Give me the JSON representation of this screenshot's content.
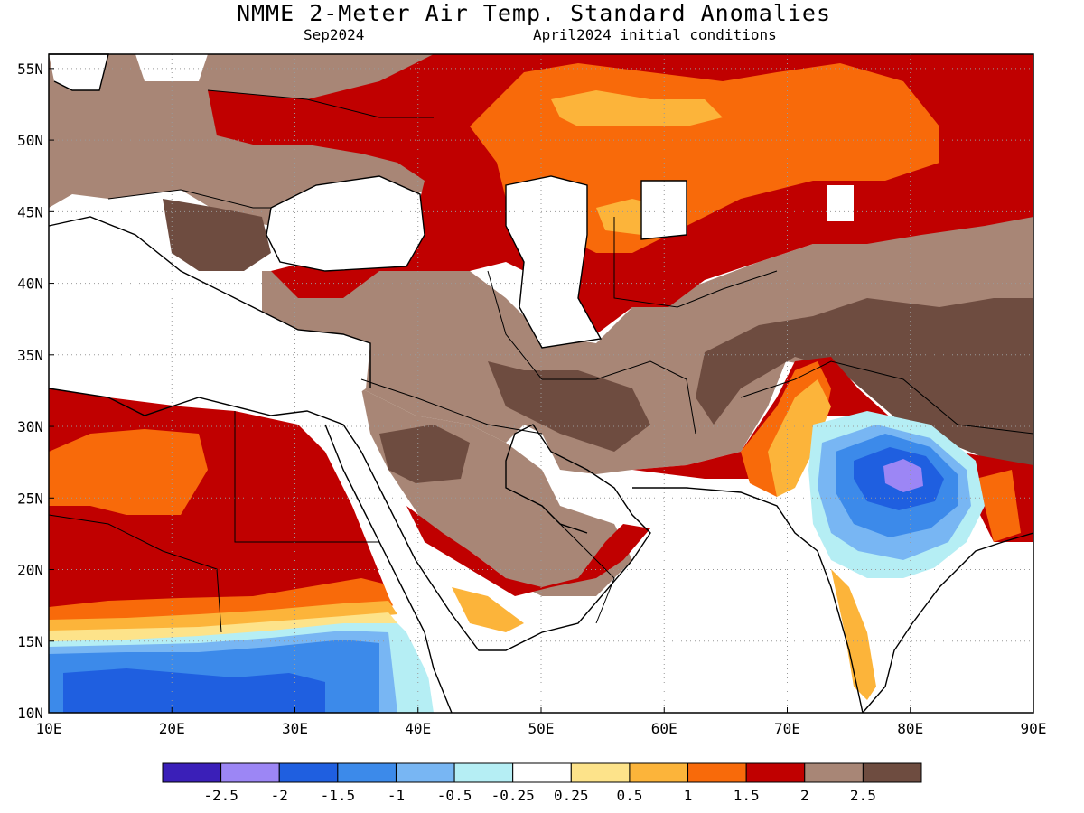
{
  "title": "NMME 2-Meter Air Temp. Standard Anomalies",
  "valid_month": "Sep2024",
  "init": "April2024 initial conditions",
  "lat_labels": [
    "55N",
    "50N",
    "45N",
    "40N",
    "35N",
    "30N",
    "25N",
    "20N",
    "15N",
    "10N"
  ],
  "lon_labels": [
    "10E",
    "20E",
    "30E",
    "40E",
    "50E",
    "60E",
    "70E",
    "80E",
    "90E"
  ],
  "map_extent": {
    "lon": [
      10,
      90
    ],
    "lat": [
      10,
      56
    ]
  },
  "legend": {
    "colors": [
      "#3a1fb8",
      "#9c86f5",
      "#1f5fe0",
      "#3c8aea",
      "#78b6f3",
      "#b5eef4",
      "#ffffff",
      "#fde38a",
      "#fcb43a",
      "#f86a0a",
      "#c00000",
      "#a88676",
      "#6e4c40"
    ],
    "labels": [
      "-2.5",
      "-2",
      "-1.5",
      "-1",
      "-0.5",
      "-0.25",
      "0.25",
      "0.5",
      "1",
      "1.5",
      "2",
      "2.5"
    ]
  },
  "colors": {
    "land_brown": "#a88676",
    "dark_brown": "#6e4c40",
    "red": "#c00000",
    "orange": "#f86a0a",
    "light_orange": "#fcb43a",
    "yellow": "#fde38a",
    "light_cyan": "#b5eef4",
    "light_blue": "#78b6f3",
    "mid_blue": "#3c8aea",
    "blue": "#1f5fe0",
    "lavender": "#9c86f5"
  }
}
